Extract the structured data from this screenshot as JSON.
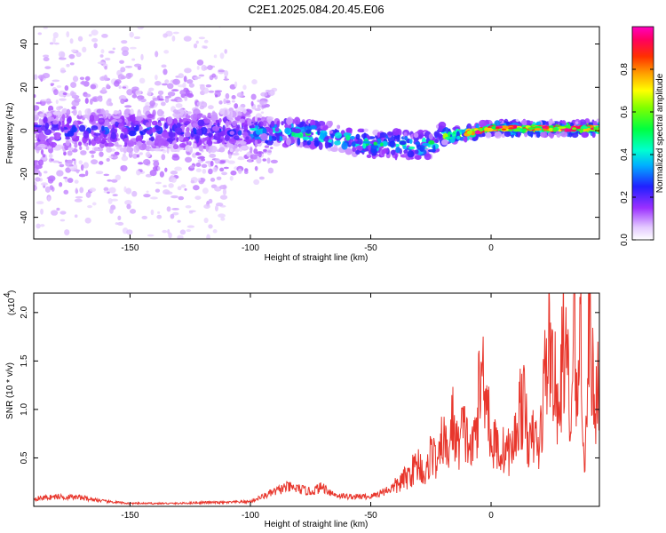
{
  "title": "C2E1.2025.084.20.45.E06",
  "chart_data": [
    {
      "type": "heatmap",
      "title": "",
      "xlabel": "Height of straight line (km)",
      "ylabel": "Frequency (Hz)",
      "xlim": [
        -190,
        45
      ],
      "ylim": [
        -50,
        48
      ],
      "xticks": [
        -150,
        -100,
        -50,
        0
      ],
      "xtick_labels": [
        "-150",
        "-100",
        "-50",
        "0"
      ],
      "yticks": [
        -40,
        -20,
        0,
        20,
        40
      ],
      "ytick_labels": [
        "-40",
        "-20",
        "0",
        "20",
        "40"
      ],
      "colorbar": {
        "label": "Normalized spectral amplitude",
        "range": [
          0,
          1
        ],
        "ticks": [
          0.0,
          0.2,
          0.4,
          0.6,
          0.8
        ],
        "tick_labels": [
          "0.0",
          "0.2",
          "0.4",
          "0.6",
          "0.8"
        ],
        "colormap": "rainbow-white-to-magenta"
      },
      "ridge": {
        "points": [
          [
            -190,
            0
          ],
          [
            -160,
            0
          ],
          [
            -120,
            0
          ],
          [
            -100,
            0
          ],
          [
            -85,
            -1
          ],
          [
            -70,
            -2
          ],
          [
            -60,
            -4
          ],
          [
            -50,
            -6
          ],
          [
            -40,
            -6
          ],
          [
            -30,
            -7
          ],
          [
            -25,
            -6
          ],
          [
            -20,
            -3
          ],
          [
            -10,
            -1
          ],
          [
            0,
            1
          ],
          [
            20,
            1
          ],
          [
            45,
            1
          ]
        ],
        "notes": "Strong narrow band near 0 Hz from about -100 km upward; broad scattered weak energy below -100 km"
      }
    },
    {
      "type": "line",
      "title": "",
      "xlabel": "Height of straight line (km)",
      "ylabel": "SNR (10 * v/v)",
      "y_multiplier_label": "(x10",
      "y_multiplier_exp": "4",
      "xlim": [
        -190,
        45
      ],
      "ylim": [
        0,
        2.2
      ],
      "xticks": [
        -150,
        -100,
        -50,
        0
      ],
      "xtick_labels": [
        "-150",
        "-100",
        "-50",
        "0"
      ],
      "yticks": [
        0.5,
        1.0,
        1.5,
        2.0
      ],
      "ytick_labels": [
        "0.5",
        "1.0",
        "1.5",
        "2.0"
      ],
      "line_color": "#e8362c",
      "series": [
        {
          "x": [
            -190,
            -180,
            -170,
            -160,
            -150,
            -140,
            -130,
            -120,
            -110,
            -100,
            -95,
            -90,
            -85,
            -80,
            -75,
            -70,
            -65,
            -60,
            -55,
            -50,
            -45,
            -40,
            -35,
            -30,
            -27,
            -25,
            -22,
            -20,
            -18,
            -16,
            -14,
            -12,
            -10,
            -8,
            -6,
            -5,
            -4,
            -3,
            -2,
            -1,
            0,
            2,
            4,
            6,
            8,
            10,
            12,
            14,
            16,
            18,
            20,
            22,
            24,
            26,
            28,
            30,
            32,
            33,
            34,
            35,
            36,
            37,
            38,
            39,
            40,
            41,
            42,
            43,
            44,
            45
          ],
          "y": [
            0.08,
            0.1,
            0.09,
            0.05,
            0.03,
            0.03,
            0.03,
            0.04,
            0.04,
            0.05,
            0.1,
            0.15,
            0.2,
            0.18,
            0.15,
            0.2,
            0.12,
            0.1,
            0.1,
            0.1,
            0.15,
            0.2,
            0.3,
            0.45,
            0.3,
            0.6,
            0.4,
            0.75,
            0.5,
            0.9,
            0.6,
            0.8,
            0.7,
            0.55,
            0.85,
            1.15,
            1.3,
            1.42,
            1.3,
            1.0,
            0.6,
            0.65,
            0.55,
            0.6,
            0.55,
            0.7,
            1.05,
            1.0,
            0.6,
            0.75,
            0.55,
            1.25,
            1.7,
            1.45,
            0.8,
            1.75,
            1.3,
            0.6,
            1.6,
            1.9,
            0.8,
            2.15,
            1.2,
            0.25,
            1.5,
            1.85,
            1.4,
            1.0,
            1.25,
            1.4
          ]
        }
      ]
    }
  ]
}
